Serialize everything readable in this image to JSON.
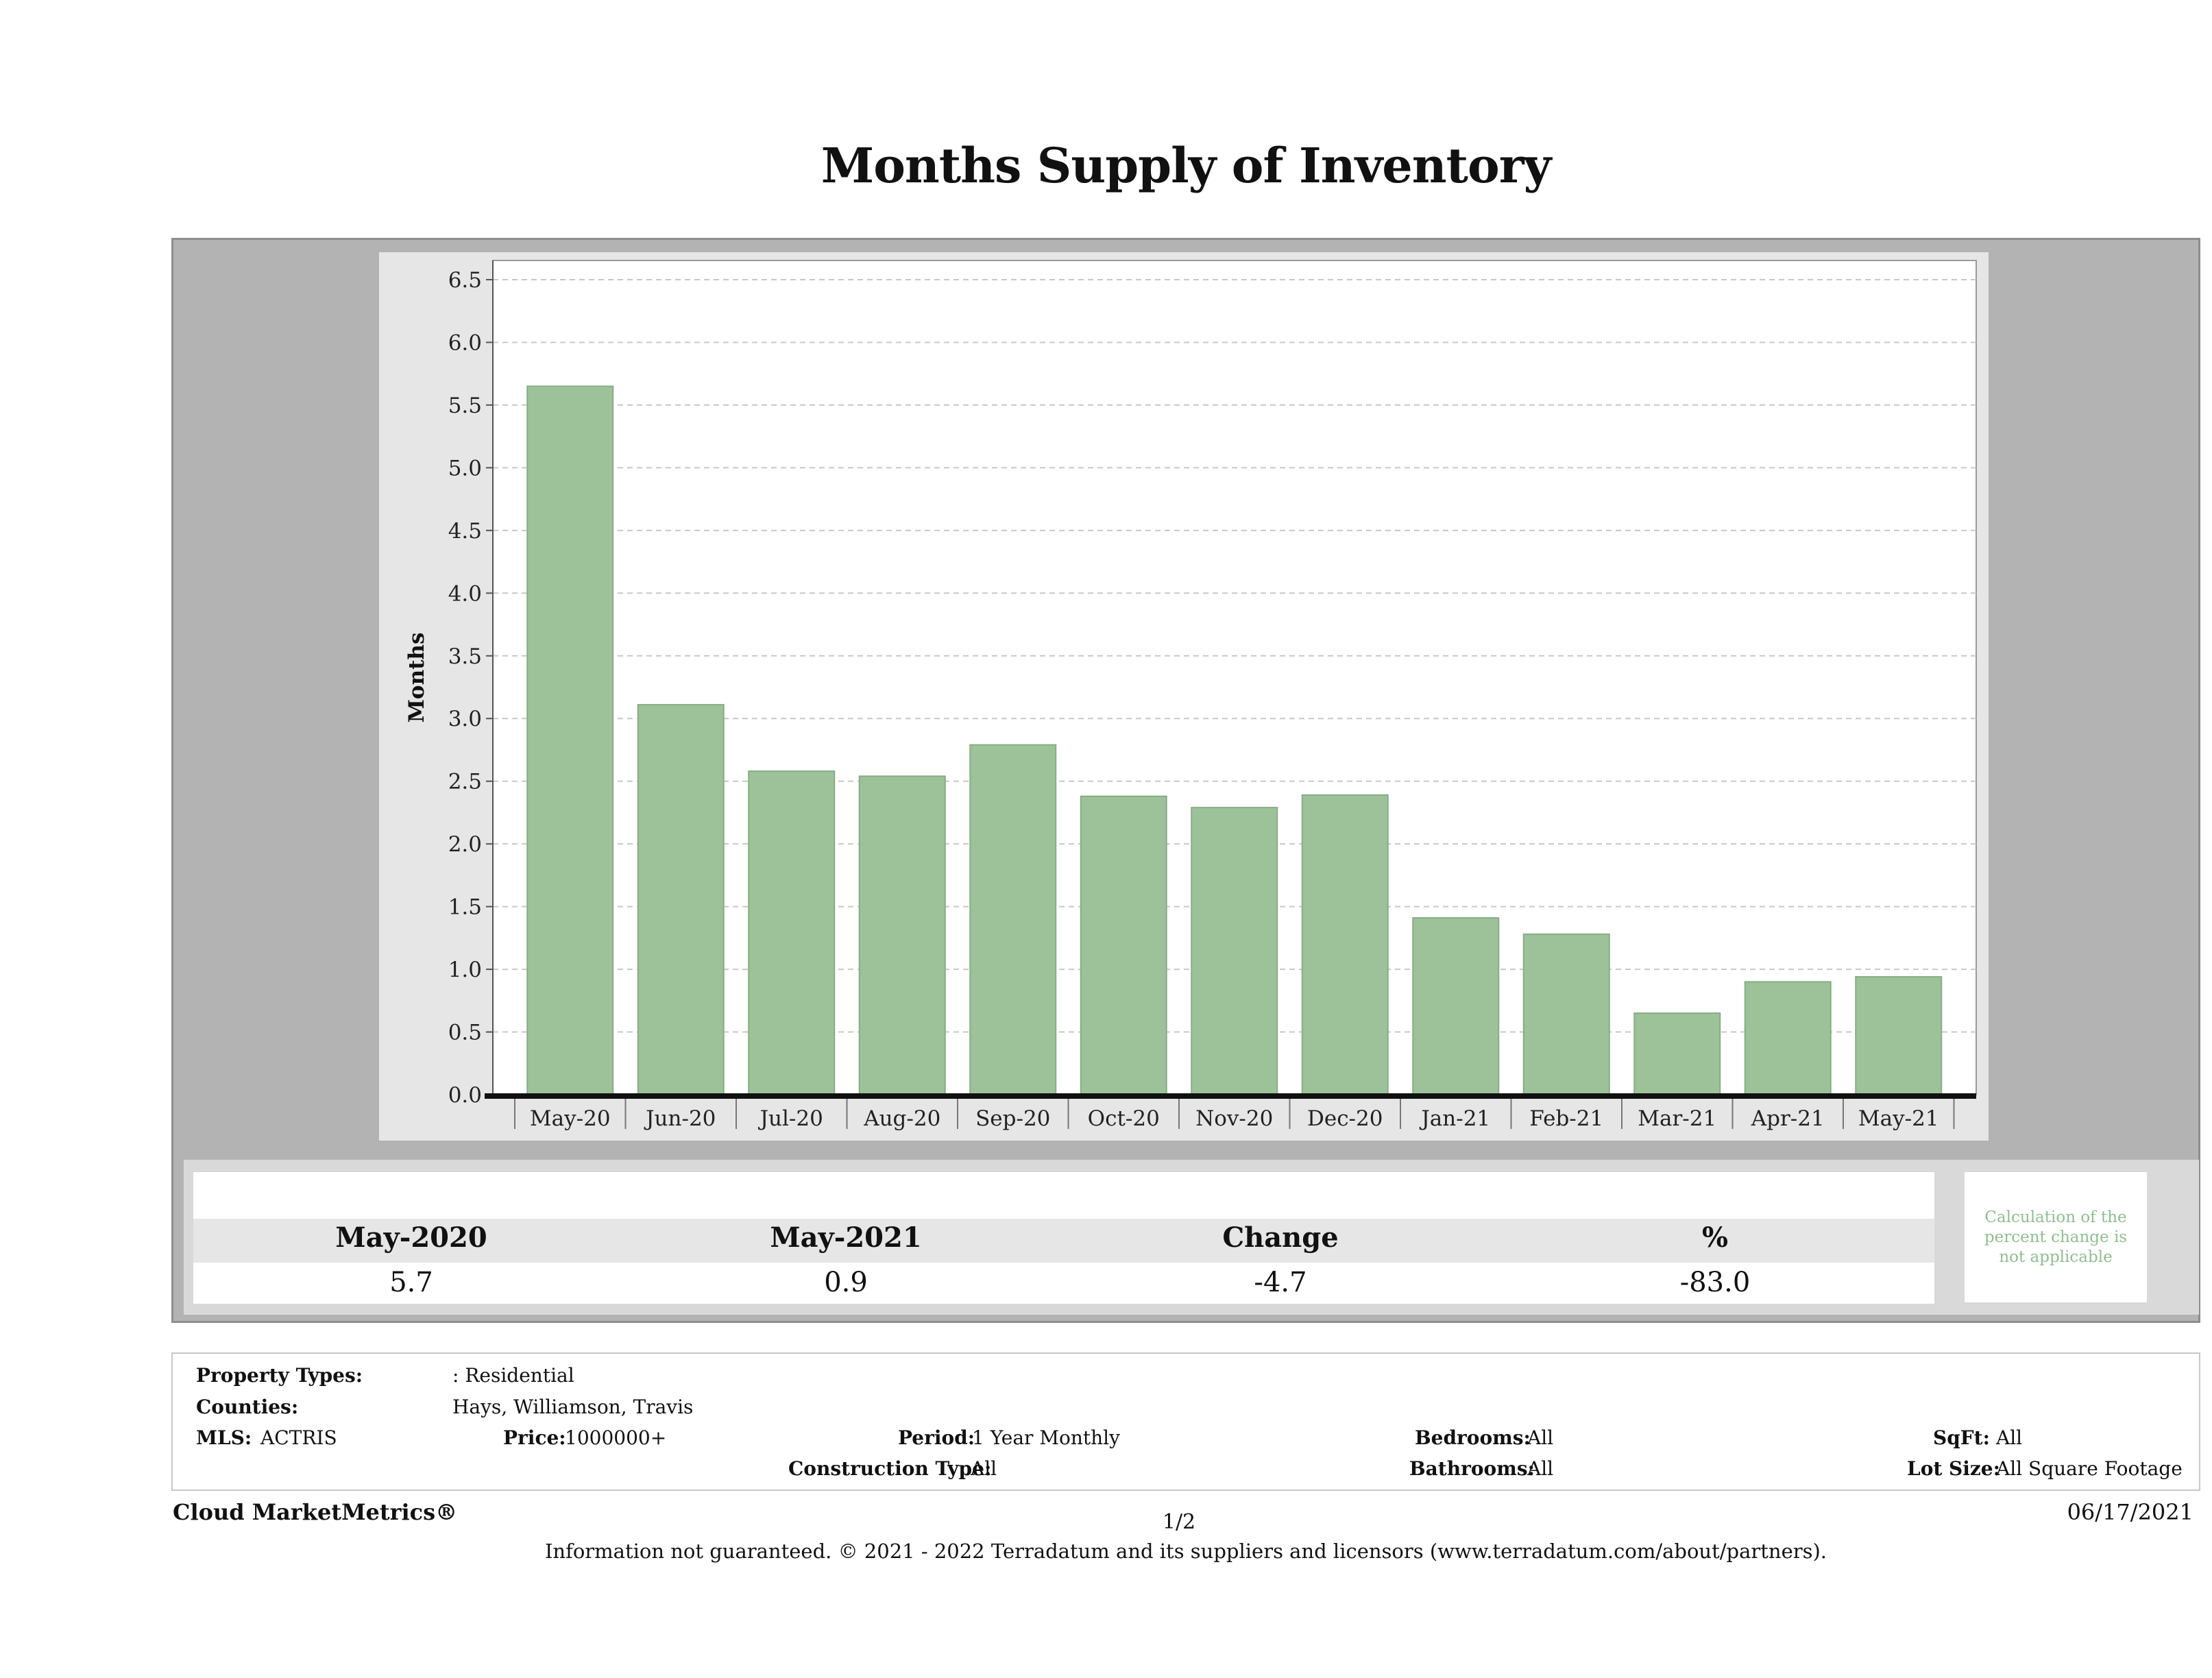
{
  "title": "Months Supply of Inventory",
  "chart_data": {
    "type": "bar",
    "ylabel": "Months",
    "xlabel": "",
    "ylim": [
      0,
      6.5
    ],
    "yticks": [
      "0.0",
      "0.5",
      "1.0",
      "1.5",
      "2.0",
      "2.5",
      "3.0",
      "3.5",
      "4.0",
      "4.5",
      "5.0",
      "5.5",
      "6.0",
      "6.5"
    ],
    "categories": [
      "May-20",
      "Jun-20",
      "Jul-20",
      "Aug-20",
      "Sep-20",
      "Oct-20",
      "Nov-20",
      "Dec-20",
      "Jan-21",
      "Feb-21",
      "Mar-21",
      "Apr-21",
      "May-21"
    ],
    "values": [
      5.65,
      3.11,
      2.58,
      2.54,
      2.79,
      2.38,
      2.29,
      2.39,
      1.41,
      1.28,
      0.65,
      0.9,
      0.94
    ],
    "bar_color": "#9dc29a",
    "grid": true,
    "legend": "none"
  },
  "summary": {
    "col1_label": "May-2020",
    "col1_value": "5.7",
    "col2_label": "May-2021",
    "col2_value": "0.9",
    "col3_label": "Change",
    "col3_value": "-4.7",
    "col4_label": "%",
    "col4_value": "-83.0",
    "note": "Calculation of the percent change is not applicable"
  },
  "criteria": {
    "property_types_label": "Property Types:",
    "property_types_value": ": Residential",
    "counties_label": "Counties:",
    "counties_value": "Hays, Williamson, Travis",
    "mls_label": "MLS:",
    "mls_value": "ACTRIS",
    "price_label": "Price:",
    "price_value": "1000000+",
    "period_label": "Period:",
    "period_value": "1 Year Monthly",
    "construction_label": "Construction Type:",
    "construction_value": "All",
    "bedrooms_label": "Bedrooms:",
    "bedrooms_value": "All",
    "bathrooms_label": "Bathrooms:",
    "bathrooms_value": "All",
    "sqft_label": "SqFt:",
    "sqft_value": "All",
    "lot_size_label": "Lot Size:",
    "lot_size_value": "All Square Footage"
  },
  "footer": {
    "brand": "Cloud MarketMetrics®",
    "page": "1/2",
    "date": "06/17/2021",
    "disclaimer": "Information not guaranteed. © 2021 - 2022 Terradatum and its suppliers and licensors (www.terradatum.com/about/partners)."
  }
}
